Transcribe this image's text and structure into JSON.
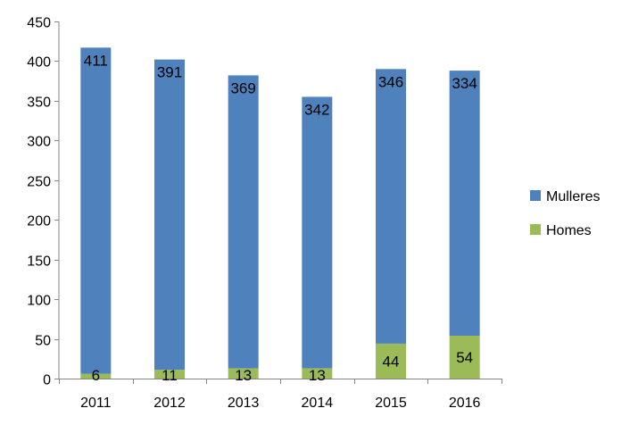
{
  "chart_data": {
    "type": "bar",
    "stacked": true,
    "categories": [
      "2011",
      "2012",
      "2013",
      "2014",
      "2015",
      "2016"
    ],
    "series": [
      {
        "name": "Homes",
        "values": [
          6,
          11,
          13,
          13,
          44,
          54
        ],
        "color": "#9BBB59"
      },
      {
        "name": "Mulleres",
        "values": [
          411,
          391,
          369,
          342,
          346,
          334
        ],
        "color": "#4F81BD"
      }
    ],
    "legend_order": [
      "Mulleres",
      "Homes"
    ],
    "ylim": [
      0,
      450
    ],
    "yticks": [
      0,
      50,
      100,
      150,
      200,
      250,
      300,
      350,
      400,
      450
    ],
    "legend": "right",
    "grid": false,
    "data_labels": true
  }
}
